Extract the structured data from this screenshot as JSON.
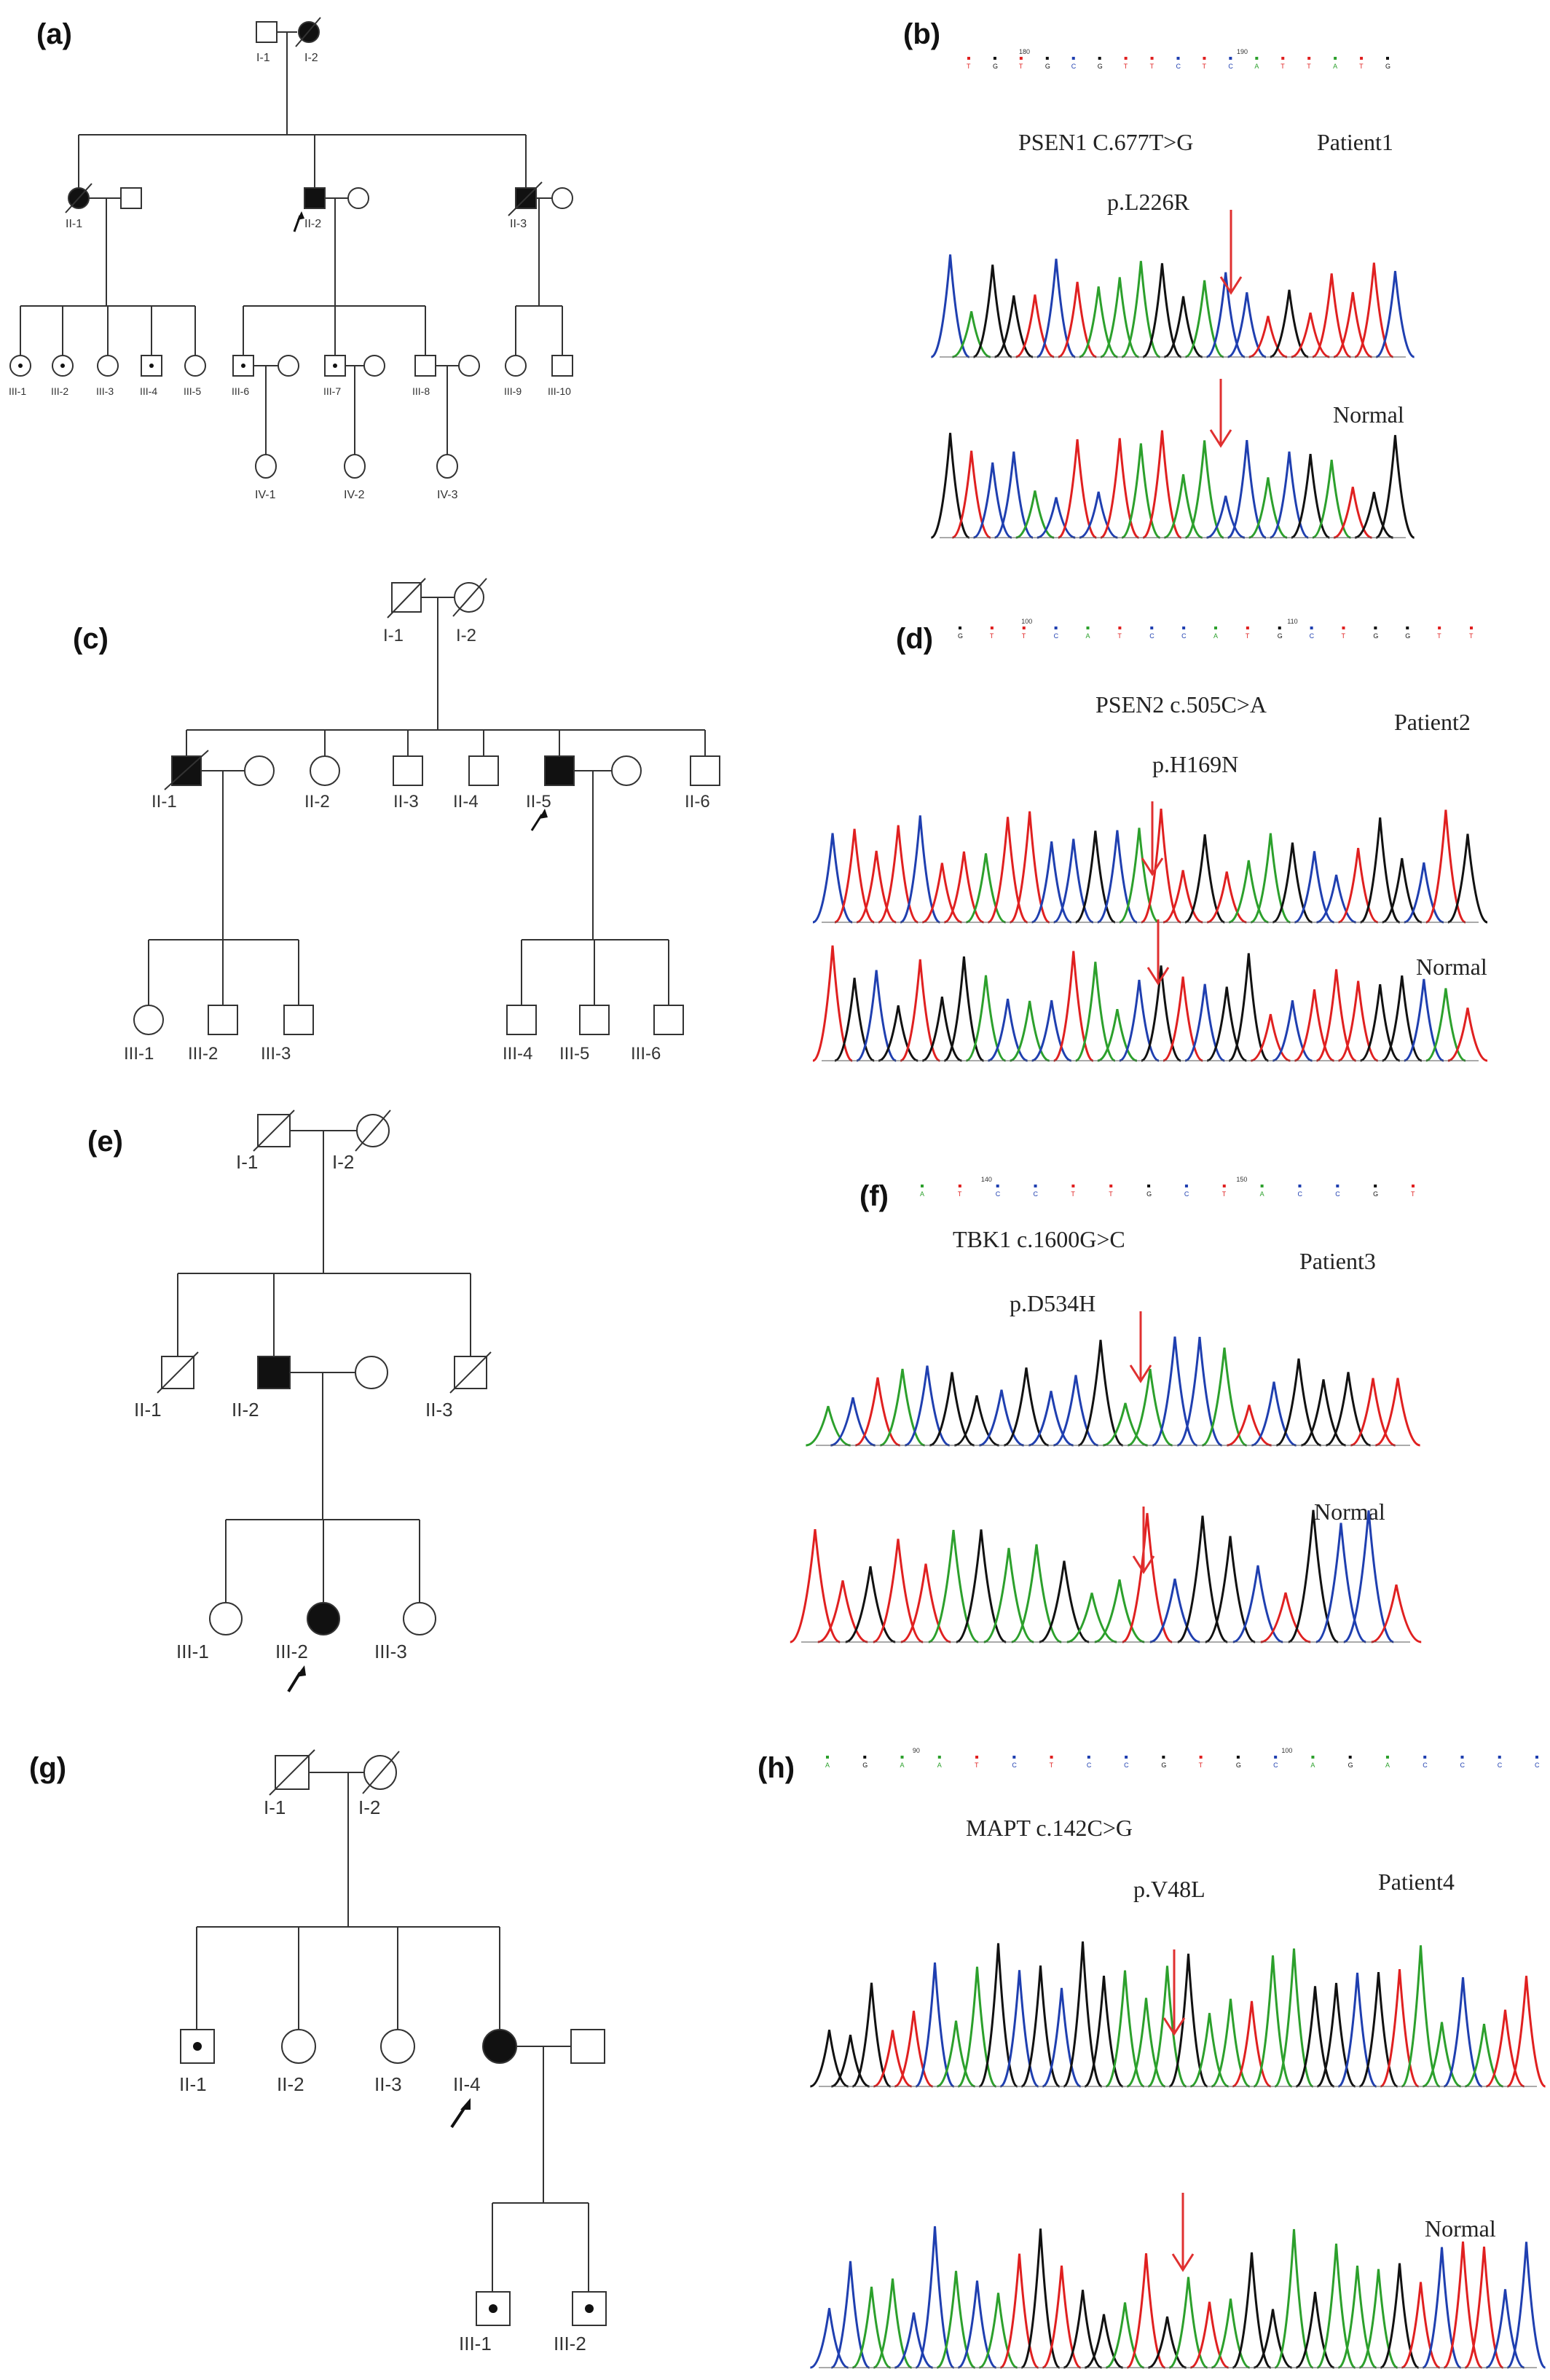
{
  "panels": {
    "a": {
      "label": "(a)",
      "individuals": [
        "I-1",
        "I-2",
        "II-1",
        "II-2",
        "II-3",
        "III-1",
        "III-2",
        "III-3",
        "III-4",
        "III-5",
        "III-6",
        "III-7",
        "III-8",
        "III-9",
        "III-10",
        "IV-1",
        "IV-2",
        "IV-3"
      ]
    },
    "b": {
      "label": "(b)",
      "mutation": "PSEN1 C.677T>G",
      "protein": "p.L226R",
      "patient": "Patient1",
      "normal": "Normal",
      "ruler": [
        "180",
        "190"
      ],
      "bases": [
        "T",
        "G",
        "T",
        "G",
        "C",
        "G",
        "T",
        "T",
        "C",
        "T",
        "C",
        "A",
        "T",
        "T",
        "A",
        "T",
        "G"
      ]
    },
    "c": {
      "label": "(c)",
      "individuals": [
        "I-1",
        "I-2",
        "II-1",
        "II-2",
        "II-3",
        "II-4",
        "II-5",
        "II-6",
        "III-1",
        "III-2",
        "III-3",
        "III-4",
        "III-5",
        "III-6"
      ]
    },
    "d": {
      "label": "(d)",
      "mutation": "PSEN2 c.505C>A",
      "protein": "p.H169N",
      "patient": "Patient2",
      "normal": "Normal",
      "ruler": [
        "100",
        "110"
      ],
      "bases": [
        "G",
        "T",
        "T",
        "C",
        "A",
        "T",
        "C",
        "C",
        "A",
        "T",
        "G",
        "C",
        "T",
        "G",
        "G",
        "T",
        "T"
      ]
    },
    "e": {
      "label": "(e)",
      "individuals": [
        "I-1",
        "I-2",
        "II-1",
        "II-2",
        "II-3",
        "III-1",
        "III-2",
        "III-3"
      ]
    },
    "f": {
      "label": "(f)",
      "mutation": "TBK1 c.1600G>C",
      "protein": "p.D534H",
      "patient": "Patient3",
      "normal": "Normal",
      "ruler": [
        "140",
        "150"
      ],
      "bases": [
        "A",
        "T",
        "C",
        "C",
        "T",
        "T",
        "G",
        "C",
        "T",
        "A",
        "C",
        "C",
        "G",
        "T"
      ]
    },
    "g": {
      "label": "(g)",
      "individuals": [
        "I-1",
        "I-2",
        "II-1",
        "II-2",
        "II-3",
        "II-4",
        "III-1",
        "III-2"
      ]
    },
    "h": {
      "label": "(h)",
      "mutation": "MAPT c.142C>G",
      "protein": "p.V48L",
      "patient": "Patient4",
      "normal": "Normal",
      "ruler": [
        "90",
        "100"
      ],
      "bases": [
        "A",
        "G",
        "A",
        "A",
        "T",
        "C",
        "T",
        "C",
        "C",
        "G",
        "T",
        "G",
        "C",
        "A",
        "G",
        "A",
        "C",
        "C",
        "C",
        "C"
      ]
    },
    "colors": {
      "arrow_red": "#e03030",
      "A": "#2ca02c",
      "C": "#1f3fb0",
      "G": "#111111",
      "T": "#e02020"
    }
  }
}
